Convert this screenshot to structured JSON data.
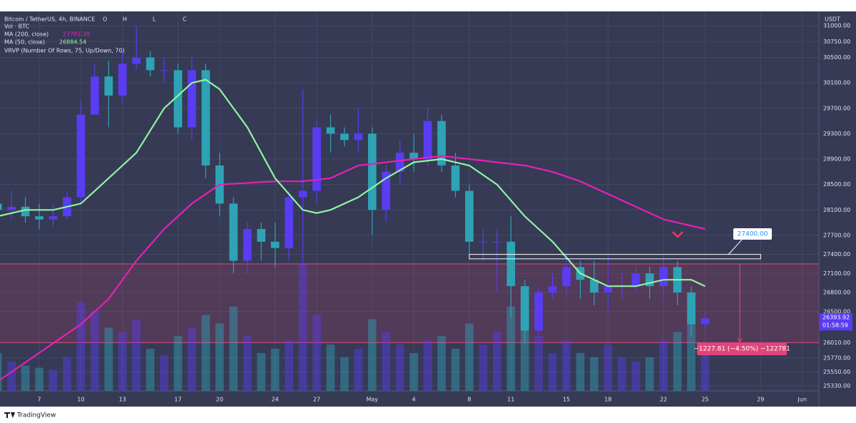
{
  "chart_data": {
    "type": "candlestick",
    "title": "Bitcoin / TetherUS, 4h, BINANCE",
    "ohlc_labels": [
      "O",
      "H",
      "L",
      "C"
    ],
    "indicator_labels": [
      "Vol · BTC",
      "VRVP (Number Of Rows, 75, Up/Down, 70)"
    ],
    "y_unit": "USDT",
    "up_color": "#5a3cf2",
    "down_color": "#2ea3b5",
    "grid": true,
    "xlim": [
      4.17,
      63.2
    ],
    "ylim": [
      25251,
      31225
    ],
    "xticks": [
      {
        "value": 7,
        "label": "7"
      },
      {
        "value": 10,
        "label": "10"
      },
      {
        "value": 13,
        "label": "13"
      },
      {
        "value": 17,
        "label": "17"
      },
      {
        "value": 20,
        "label": "20"
      },
      {
        "value": 24,
        "label": "24"
      },
      {
        "value": 27,
        "label": "27"
      },
      {
        "value": 31,
        "label": "May"
      },
      {
        "value": 34,
        "label": "4"
      },
      {
        "value": 38,
        "label": "8"
      },
      {
        "value": 41,
        "label": "11"
      },
      {
        "value": 45,
        "label": "15"
      },
      {
        "value": 48,
        "label": "18"
      },
      {
        "value": 52,
        "label": "22"
      },
      {
        "value": 55,
        "label": "25"
      },
      {
        "value": 59,
        "label": "29"
      },
      {
        "value": 62,
        "label": "Jun"
      }
    ],
    "yticks": [
      {
        "value": 31000,
        "label": "31000.00"
      },
      {
        "value": 30750,
        "label": "30750.00"
      },
      {
        "value": 30500,
        "label": "30500.00"
      },
      {
        "value": 30100,
        "label": "30100.00"
      },
      {
        "value": 29700,
        "label": "29700.00"
      },
      {
        "value": 29300,
        "label": "29300.00"
      },
      {
        "value": 28900,
        "label": "28900.00"
      },
      {
        "value": 28500,
        "label": "28500.00"
      },
      {
        "value": 28100,
        "label": "28100.00"
      },
      {
        "value": 27700,
        "label": "27700.00"
      },
      {
        "value": 27400,
        "label": "27400.00"
      },
      {
        "value": 27100,
        "label": "27100.00"
      },
      {
        "value": 26800,
        "label": "26800.00"
      },
      {
        "value": 26500,
        "label": "26500.00"
      },
      {
        "value": 26010,
        "label": "26010.00"
      },
      {
        "value": 25770,
        "label": "25770.00"
      },
      {
        "value": 25550,
        "label": "25550.00"
      },
      {
        "value": 25330,
        "label": "25330.00"
      }
    ],
    "candles": {
      "x": [
        4,
        5,
        6,
        7,
        8,
        9,
        10,
        11,
        12,
        13,
        14,
        15,
        16,
        17,
        18,
        19,
        20,
        21,
        22,
        23,
        24,
        25,
        26,
        27,
        28,
        29,
        30,
        31,
        32,
        33,
        34,
        35,
        36,
        37,
        38,
        39,
        40,
        41,
        42,
        43,
        44,
        45,
        46,
        47,
        48,
        49,
        50,
        51,
        52,
        53,
        54,
        55
      ],
      "open": [
        28200,
        28100,
        28150,
        28000,
        27950,
        28000,
        28300,
        29600,
        30200,
        29900,
        30400,
        30500,
        30300,
        30300,
        29400,
        30300,
        28800,
        28200,
        27300,
        27800,
        27600,
        27500,
        28300,
        28400,
        29400,
        29300,
        29200,
        29300,
        28100,
        28700,
        29000,
        28900,
        29500,
        28800,
        28400,
        27600,
        27600,
        27600,
        26900,
        26200,
        26800,
        26900,
        27200,
        27000,
        26800,
        26900,
        26900,
        27100,
        26900,
        27200,
        26800,
        26300
      ],
      "high": [
        28500,
        28400,
        28300,
        28200,
        28200,
        28400,
        29800,
        30400,
        30450,
        30600,
        31000,
        30600,
        30500,
        30400,
        30500,
        30400,
        29000,
        28300,
        27900,
        27900,
        27900,
        28400,
        30000,
        29500,
        29600,
        29400,
        29700,
        29400,
        28800,
        29200,
        29300,
        29700,
        29600,
        29000,
        28500,
        27800,
        27800,
        28000,
        27000,
        26900,
        27100,
        27400,
        27300,
        27300,
        27400,
        27100,
        27200,
        27200,
        27400,
        27300,
        26900,
        26500
      ],
      "low": [
        27900,
        27950,
        27900,
        27800,
        27850,
        27950,
        28200,
        29600,
        29400,
        29800,
        30300,
        30200,
        30100,
        29300,
        29200,
        28600,
        28000,
        27100,
        27100,
        27300,
        27200,
        27300,
        27200,
        28200,
        29000,
        29100,
        29000,
        27700,
        27900,
        28500,
        28700,
        28800,
        28700,
        28300,
        27400,
        27300,
        26800,
        26400,
        26000,
        26100,
        26700,
        26800,
        26700,
        26600,
        26500,
        26700,
        26800,
        26700,
        26700,
        26600,
        26100,
        26200
      ],
      "close": [
        28100,
        28150,
        28000,
        27950,
        28000,
        28300,
        29600,
        30200,
        29900,
        30400,
        30500,
        30300,
        30300,
        29400,
        30300,
        28800,
        28200,
        27300,
        27800,
        27600,
        27500,
        28300,
        28400,
        29400,
        29300,
        29200,
        29300,
        28100,
        28700,
        29000,
        28900,
        29500,
        28800,
        28400,
        27600,
        27600,
        27600,
        26900,
        26200,
        26800,
        26900,
        27200,
        27000,
        26800,
        26900,
        26900,
        27100,
        26900,
        27200,
        26800,
        26300,
        26393.92
      ],
      "volume": [
        18000,
        14000,
        12000,
        11000,
        10000,
        16000,
        42000,
        38000,
        30000,
        28000,
        34000,
        20000,
        17000,
        26000,
        30000,
        36000,
        32000,
        40000,
        26000,
        18000,
        20000,
        24000,
        60000,
        36000,
        22000,
        16000,
        20000,
        34000,
        28000,
        22000,
        18000,
        24000,
        26000,
        20000,
        32000,
        22000,
        28000,
        40000,
        42000,
        26000,
        18000,
        24000,
        18000,
        16000,
        22000,
        16000,
        14000,
        16000,
        24000,
        28000,
        38000,
        20000
      ],
      "vlim": [
        0,
        90000
      ]
    },
    "series": [
      {
        "name": "MA (200, close)",
        "color": "#e620b8",
        "last_label": "27781.38",
        "x": [
          4,
          6,
          8,
          10,
          12,
          14,
          16,
          18,
          20,
          24,
          26,
          28,
          30,
          32,
          34,
          36,
          38,
          40,
          42,
          44,
          46,
          48,
          50,
          52,
          54,
          55
        ],
        "values": [
          25400,
          25700,
          26000,
          26300,
          26700,
          27300,
          27800,
          28200,
          28500,
          28550,
          28550,
          28600,
          28800,
          28850,
          28900,
          28950,
          28900,
          28850,
          28800,
          28700,
          28550,
          28350,
          28150,
          27950,
          27850,
          27800
        ]
      },
      {
        "name": "MA (50, close)",
        "color": "#8ef5a0",
        "last_label": "26884.54",
        "x": [
          4,
          6,
          8,
          10,
          12,
          14,
          16,
          18,
          19,
          20,
          22,
          24,
          26,
          27,
          28,
          30,
          32,
          34,
          36,
          38,
          40,
          42,
          44,
          46,
          48,
          50,
          52,
          54,
          55
        ],
        "values": [
          28000,
          28100,
          28100,
          28200,
          28600,
          29000,
          29700,
          30100,
          30150,
          30000,
          29400,
          28600,
          28100,
          28050,
          28100,
          28300,
          28600,
          28850,
          28900,
          28800,
          28500,
          28000,
          27600,
          27100,
          26900,
          26900,
          27000,
          27000,
          26900
        ]
      }
    ],
    "zone": [
      26010,
      27250
    ],
    "level_box": {
      "value": 27400,
      "label": "27400.00",
      "low": 27330,
      "x": [
        38,
        59
      ]
    },
    "measure": {
      "label": "−1227.81 (−4.50%) −122781",
      "x": 57.5,
      "from": 27250,
      "to": 26022
    },
    "last_price": {
      "value": 26393.92,
      "countdown": "01:58:59"
    },
    "footer": "TradingView"
  }
}
